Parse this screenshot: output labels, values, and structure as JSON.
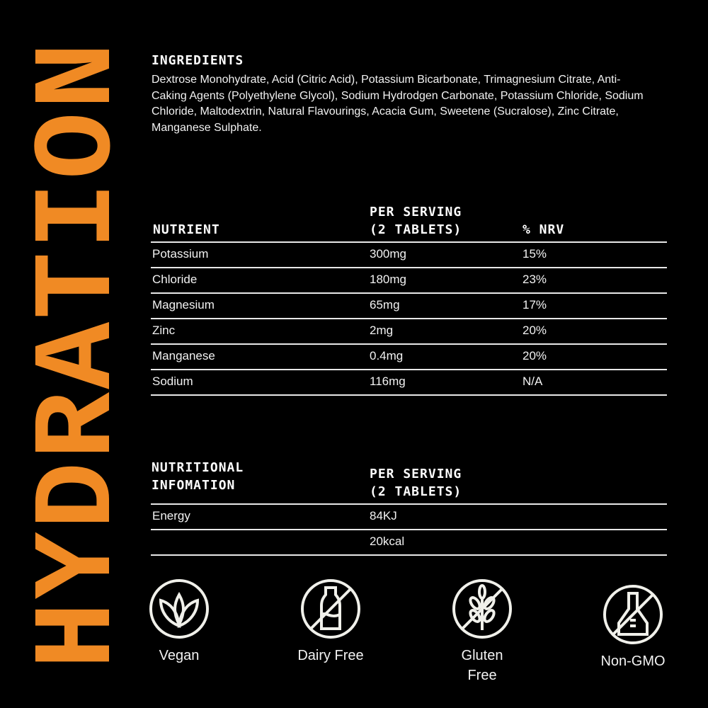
{
  "brand": {
    "title": "HYDRATION",
    "color": "#F08A24"
  },
  "ingredients": {
    "title": "INGREDIENTS",
    "text": "Dextrose Monohydrate, Acid (Citric Acid), Potassium Bicarbonate, Trimagnesium Citrate, Anti-Caking Agents (Polyethylene Glycol), Sodium Hydrodgen Carbonate, Potassium Chloride, Sodium Chloride, Maltodextrin, Natural Flavourings, Acacia Gum, Sweetene (Sucralose), Zinc Citrate, Manganese Sulphate."
  },
  "nutrients": {
    "headers": [
      "NUTRIENT",
      "PER SERVING",
      "(2 TABLETS)",
      "% NRV"
    ],
    "rows": [
      [
        "Potassium",
        "300mg",
        "15%"
      ],
      [
        "Chloride",
        "180mg",
        "23%"
      ],
      [
        "Magnesium",
        "65mg",
        "17%"
      ],
      [
        "Zinc",
        "2mg",
        "20%"
      ],
      [
        "Manganese",
        "0.4mg",
        "20%"
      ],
      [
        "Sodium",
        "116mg",
        "N/A"
      ]
    ]
  },
  "nutrition": {
    "headers": [
      "NUTRITIONAL",
      "INFOMATION",
      "PER SERVING",
      "(2 TABLETS)"
    ],
    "rows": [
      [
        "Energy",
        "84KJ"
      ],
      [
        "",
        "20kcal"
      ]
    ]
  },
  "badges": [
    {
      "label": "Vegan",
      "icon": "leaf-icon"
    },
    {
      "label": "Dairy Free",
      "icon": "no-milk-icon"
    },
    {
      "label": "Gluten",
      "label2": "Free",
      "icon": "no-wheat-icon"
    },
    {
      "label": "Non-GMO",
      "icon": "no-gmo-flask-icon"
    }
  ]
}
